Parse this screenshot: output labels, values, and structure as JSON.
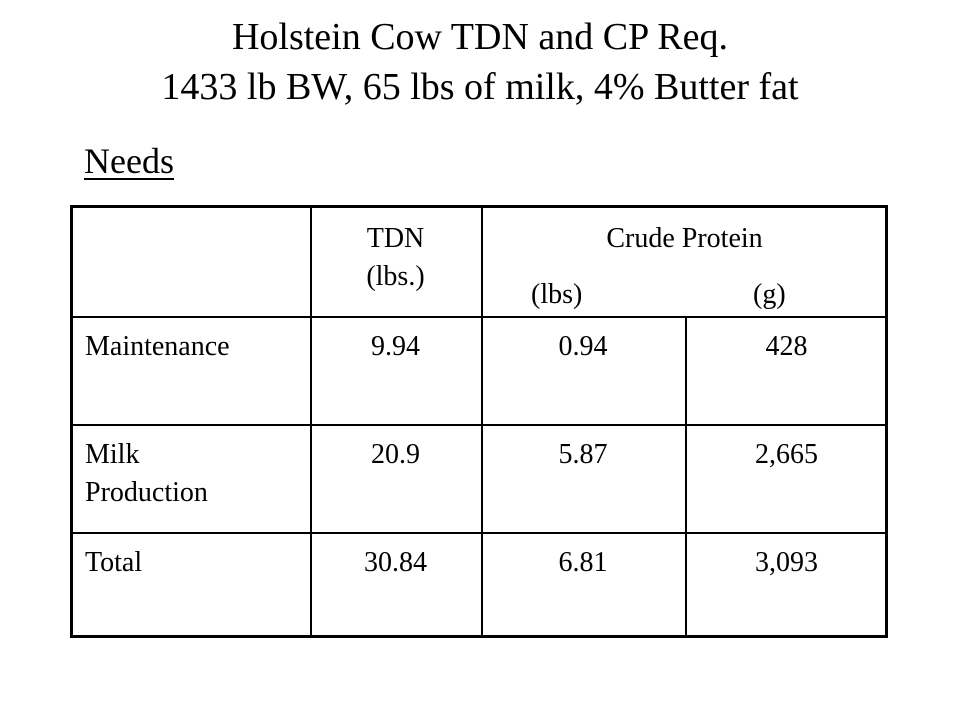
{
  "title": {
    "line1": "Holstein Cow TDN and CP Req.",
    "line2": "1433 lb BW, 65 lbs of milk, 4% Butter fat"
  },
  "section_label": "Needs",
  "table": {
    "header": {
      "tdn_line1": "TDN",
      "tdn_line2": "(lbs.)",
      "cp_label": "Crude Protein",
      "cp_lbs": "(lbs)",
      "cp_g": "(g)"
    },
    "rows": [
      {
        "label_line1": "Maintenance",
        "label_line2": "",
        "tdn": "9.94",
        "cp_lbs": "0.94",
        "cp_g": "428"
      },
      {
        "label_line1": "Milk",
        "label_line2": "Production",
        "tdn": "20.9",
        "cp_lbs": "5.87",
        "cp_g": "2,665"
      },
      {
        "label_line1": "Total",
        "label_line2": "",
        "tdn": "30.84",
        "cp_lbs": "6.81",
        "cp_g": "3,093"
      }
    ]
  }
}
